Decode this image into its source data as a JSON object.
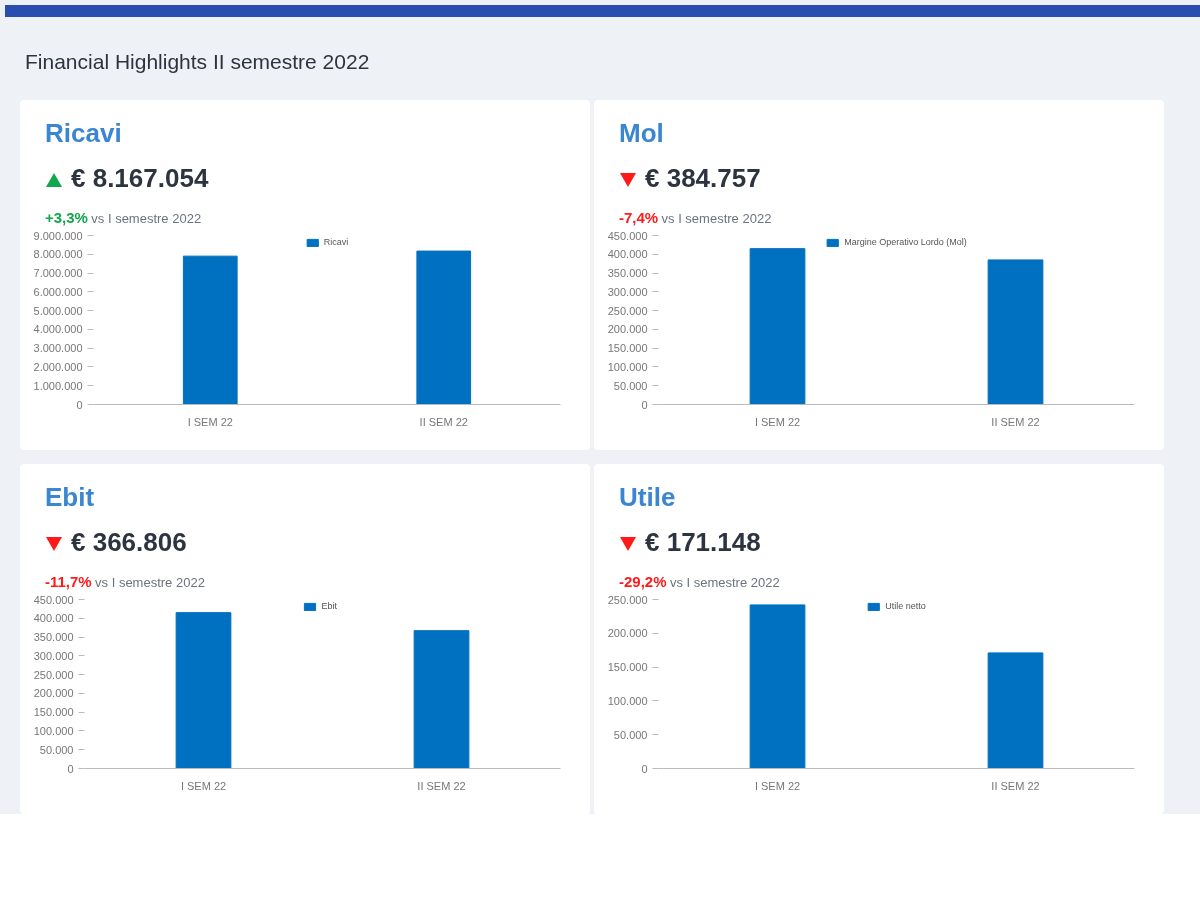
{
  "chart_data": [
    {
      "type": "other",
      "title": "Financial Highlights II semestre 2022"
    },
    {
      "type": "bar",
      "title": "Ricavi",
      "subtitle": "€ 8.167.054",
      "annotations": [
        "+3,3%",
        "vs I semestre 2022"
      ],
      "categories": [
        "I SEM 22",
        "II SEM 22"
      ],
      "series": [
        {
          "name": "Ricavi",
          "color": "#0070c0",
          "values": [
            7900000,
            8170000
          ]
        }
      ],
      "ylim": [
        0,
        9000000
      ],
      "yticks": [
        {
          "value": 0,
          "label": "0"
        },
        {
          "value": 1000000,
          "label": "1.000.000"
        },
        {
          "value": 2000000,
          "label": "2.000.000"
        },
        {
          "value": 3000000,
          "label": "3.000.000"
        },
        {
          "value": 4000000,
          "label": "4.000.000"
        },
        {
          "value": 5000000,
          "label": "5.000.000"
        },
        {
          "value": 6000000,
          "label": "6.000.000"
        },
        {
          "value": 7000000,
          "label": "7.000.000"
        },
        {
          "value": 8000000,
          "label": "8.000.000"
        },
        {
          "value": 9000000,
          "label": "9.000.000"
        }
      ],
      "legend": "top"
    },
    {
      "type": "bar",
      "title": "Mol",
      "subtitle": "€ 384.757",
      "annotations": [
        "-7,4%",
        "vs I semestre 2022"
      ],
      "categories": [
        "I SEM 22",
        "II SEM 22"
      ],
      "series": [
        {
          "name": "Margine Operativo Lordo (Mol)",
          "color": "#0070c0",
          "values": [
            415000,
            385000
          ]
        }
      ],
      "ylim": [
        0,
        450000
      ],
      "yticks": [
        {
          "value": 0,
          "label": "0"
        },
        {
          "value": 50000,
          "label": "50.000"
        },
        {
          "value": 100000,
          "label": "100.000"
        },
        {
          "value": 150000,
          "label": "150.000"
        },
        {
          "value": 200000,
          "label": "200.000"
        },
        {
          "value": 250000,
          "label": "250.000"
        },
        {
          "value": 300000,
          "label": "300.000"
        },
        {
          "value": 350000,
          "label": "350.000"
        },
        {
          "value": 400000,
          "label": "400.000"
        },
        {
          "value": 450000,
          "label": "450.000"
        }
      ],
      "legend": "top"
    },
    {
      "type": "bar",
      "title": "Ebit",
      "subtitle": "€ 366.806",
      "annotations": [
        "-11,7%",
        "vs I semestre 2022"
      ],
      "categories": [
        "I SEM 22",
        "II SEM 22"
      ],
      "series": [
        {
          "name": "Ebit",
          "color": "#0070c0",
          "values": [
            415000,
            367000
          ]
        }
      ],
      "ylim": [
        0,
        450000
      ],
      "yticks": [
        {
          "value": 0,
          "label": "0"
        },
        {
          "value": 50000,
          "label": "50.000"
        },
        {
          "value": 100000,
          "label": "100.000"
        },
        {
          "value": 150000,
          "label": "150.000"
        },
        {
          "value": 200000,
          "label": "200.000"
        },
        {
          "value": 250000,
          "label": "250.000"
        },
        {
          "value": 300000,
          "label": "300.000"
        },
        {
          "value": 350000,
          "label": "350.000"
        },
        {
          "value": 400000,
          "label": "400.000"
        },
        {
          "value": 450000,
          "label": "450.000"
        }
      ],
      "legend": "top"
    },
    {
      "type": "bar",
      "title": "Utile",
      "subtitle": "€ 171.148",
      "annotations": [
        "-29,2%",
        "vs I semestre 2022"
      ],
      "categories": [
        "I SEM 22",
        "II SEM 22"
      ],
      "series": [
        {
          "name": "Utile netto",
          "color": "#0070c0",
          "values": [
            242000,
            171000
          ]
        }
      ],
      "ylim": [
        0,
        250000
      ],
      "yticks": [
        {
          "value": 0,
          "label": "0"
        },
        {
          "value": 50000,
          "label": "50.000"
        },
        {
          "value": 100000,
          "label": "100.000"
        },
        {
          "value": 150000,
          "label": "150.000"
        },
        {
          "value": 200000,
          "label": "200.000"
        },
        {
          "value": 250000,
          "label": "250.000"
        }
      ],
      "legend": "top"
    }
  ]
}
